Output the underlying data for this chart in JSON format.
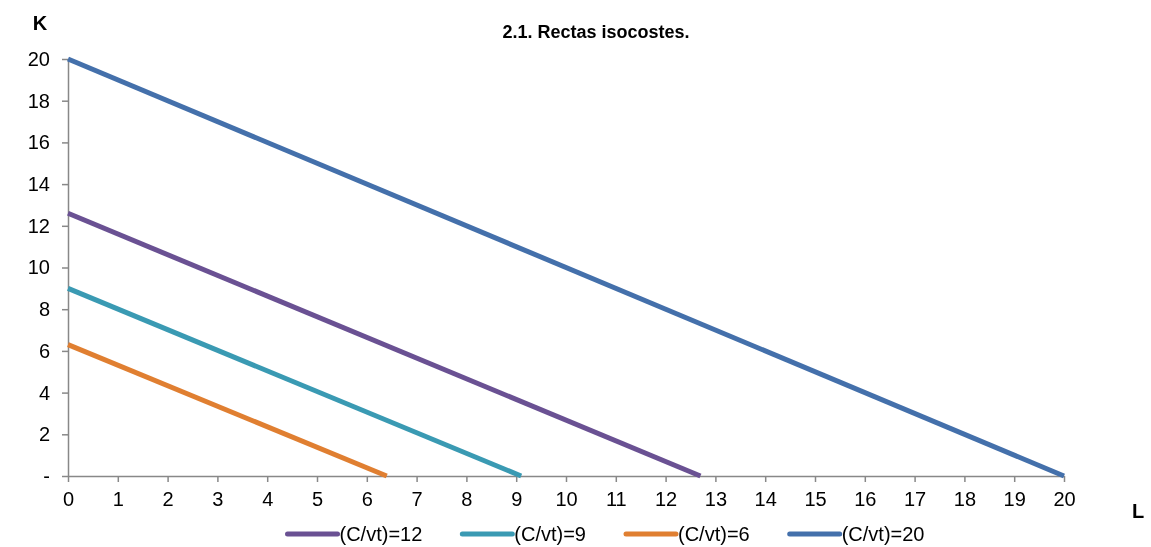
{
  "chart_data": {
    "type": "line",
    "title": "2.1. Rectas isocostes.",
    "xlabel": "L",
    "ylabel": "K",
    "xlim": [
      0,
      20
    ],
    "xticks": [
      0,
      1,
      2,
      3,
      4,
      5,
      6,
      7,
      8,
      9,
      10,
      11,
      12,
      13,
      14,
      15,
      16,
      17,
      18,
      19,
      20
    ],
    "ylim": [
      0,
      20
    ],
    "yticks": [
      {
        "value": 0,
        "label": "-"
      },
      2,
      4,
      6,
      8,
      10,
      12,
      14,
      16,
      18,
      20
    ],
    "grid": false,
    "legend": "bottom",
    "marker": "none",
    "line_style": "solid",
    "series": [
      {
        "name": "(C/vt)=12",
        "color": "#6a5193",
        "x": [
          0,
          12.7
        ],
        "values": [
          12.6,
          0
        ]
      },
      {
        "name": "(C/vt)=9",
        "color": "#3a9ab3",
        "x": [
          0,
          9.1
        ],
        "values": [
          9,
          0
        ]
      },
      {
        "name": "(C/vt)=6",
        "color": "#e07f31",
        "x": [
          0,
          6.4
        ],
        "values": [
          6.3,
          0
        ]
      },
      {
        "name": "(C/vt)=20",
        "color": "#4470ab",
        "x": [
          0,
          20
        ],
        "values": [
          20,
          0
        ]
      }
    ]
  }
}
